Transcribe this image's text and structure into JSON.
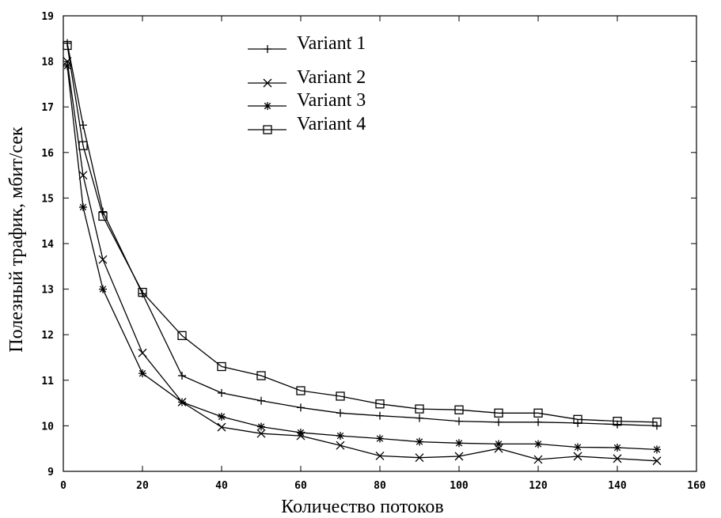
{
  "chart_data": {
    "type": "line",
    "xlabel": "Количество потоков",
    "ylabel": "Полезный трафик, мбит/сек",
    "xlim": [
      0,
      160
    ],
    "ylim": [
      9,
      19
    ],
    "xticks": [
      "0",
      "20",
      "40",
      "60",
      "80",
      "100",
      "120",
      "140",
      "160"
    ],
    "yticks": [
      "9",
      "10",
      "11",
      "12",
      "13",
      "14",
      "15",
      "16",
      "17",
      "18",
      "19"
    ],
    "legend_position": "top-center",
    "grid": false,
    "series": [
      {
        "name": "Variant 1",
        "marker": "plus",
        "x": [
          1,
          5,
          10,
          20,
          30,
          40,
          50,
          60,
          70,
          80,
          90,
          100,
          110,
          120,
          130,
          140,
          150
        ],
        "y": [
          18.4,
          16.6,
          14.7,
          12.9,
          11.1,
          10.72,
          10.55,
          10.4,
          10.28,
          10.22,
          10.17,
          10.1,
          10.08,
          10.08,
          10.06,
          10.03,
          10.0
        ]
      },
      {
        "name": "Variant 2",
        "marker": "cross",
        "x": [
          1,
          5,
          10,
          20,
          30,
          40,
          50,
          60,
          70,
          80,
          90,
          100,
          110,
          120,
          130,
          140,
          150
        ],
        "y": [
          18.0,
          15.5,
          13.65,
          11.6,
          10.52,
          9.97,
          9.83,
          9.78,
          9.57,
          9.34,
          9.3,
          9.33,
          9.5,
          9.26,
          9.33,
          9.28,
          9.23
        ]
      },
      {
        "name": "Variant 3",
        "marker": "star",
        "x": [
          1,
          5,
          10,
          20,
          30,
          40,
          50,
          60,
          70,
          80,
          90,
          100,
          110,
          120,
          130,
          140,
          150
        ],
        "y": [
          17.9,
          14.8,
          13.0,
          11.15,
          10.52,
          10.2,
          9.98,
          9.85,
          9.78,
          9.72,
          9.65,
          9.62,
          9.6,
          9.6,
          9.53,
          9.52,
          9.48
        ]
      },
      {
        "name": "Variant 4",
        "marker": "square",
        "x": [
          1,
          5,
          10,
          20,
          30,
          40,
          50,
          60,
          70,
          80,
          90,
          100,
          110,
          120,
          130,
          140,
          150
        ],
        "y": [
          18.35,
          16.15,
          14.6,
          12.93,
          11.98,
          11.3,
          11.1,
          10.77,
          10.65,
          10.48,
          10.37,
          10.35,
          10.28,
          10.28,
          10.14,
          10.1,
          10.08
        ]
      }
    ]
  }
}
